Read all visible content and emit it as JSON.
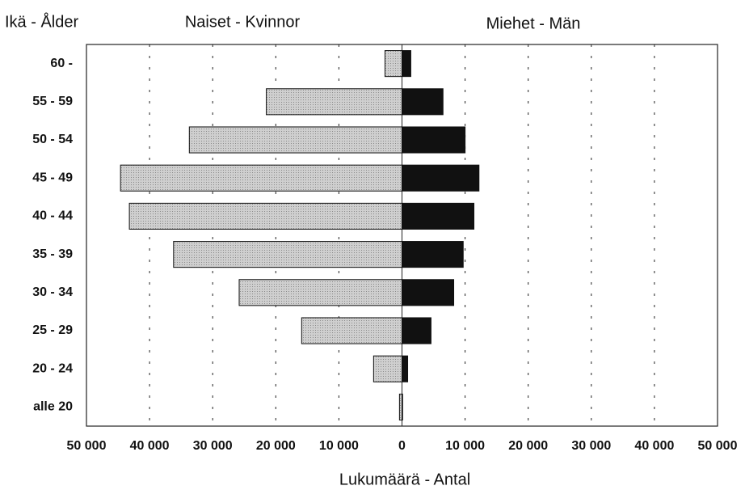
{
  "chart_data": {
    "type": "bar",
    "orientation": "horizontal",
    "ylabel": "Ikä - Ålder",
    "xlabel": "Lukumäärä - Antal",
    "categories": [
      "60 -",
      "55 - 59",
      "50 - 54",
      "45 - 49",
      "40 - 44",
      "35 - 39",
      "30 - 34",
      "25 - 29",
      "20 - 24",
      "alle 20"
    ],
    "series": [
      {
        "name": "Naiset - Kvinnor",
        "color": "#c4c4c4",
        "values": [
          -2700,
          -21500,
          -33700,
          -44600,
          -43200,
          -36200,
          -25800,
          -15900,
          -4500,
          -400
        ]
      },
      {
        "name": "Miehet - Män",
        "color": "#111111",
        "values": [
          1400,
          6500,
          10000,
          12200,
          11400,
          9700,
          8200,
          4600,
          900,
          100
        ]
      }
    ],
    "xlim": [
      -50000,
      50000
    ],
    "xticks": [
      {
        "value": -50000,
        "label": "50 000"
      },
      {
        "value": -40000,
        "label": "40 000"
      },
      {
        "value": -30000,
        "label": "30 000"
      },
      {
        "value": -20000,
        "label": "20 000"
      },
      {
        "value": -10000,
        "label": "10 000"
      },
      0,
      {
        "value": 10000,
        "label": "10 000"
      },
      {
        "value": 20000,
        "label": "20 000"
      },
      {
        "value": 30000,
        "label": "30 000"
      },
      {
        "value": 40000,
        "label": "40 000"
      },
      {
        "value": 50000,
        "label": "50 000"
      }
    ],
    "grid": true
  }
}
